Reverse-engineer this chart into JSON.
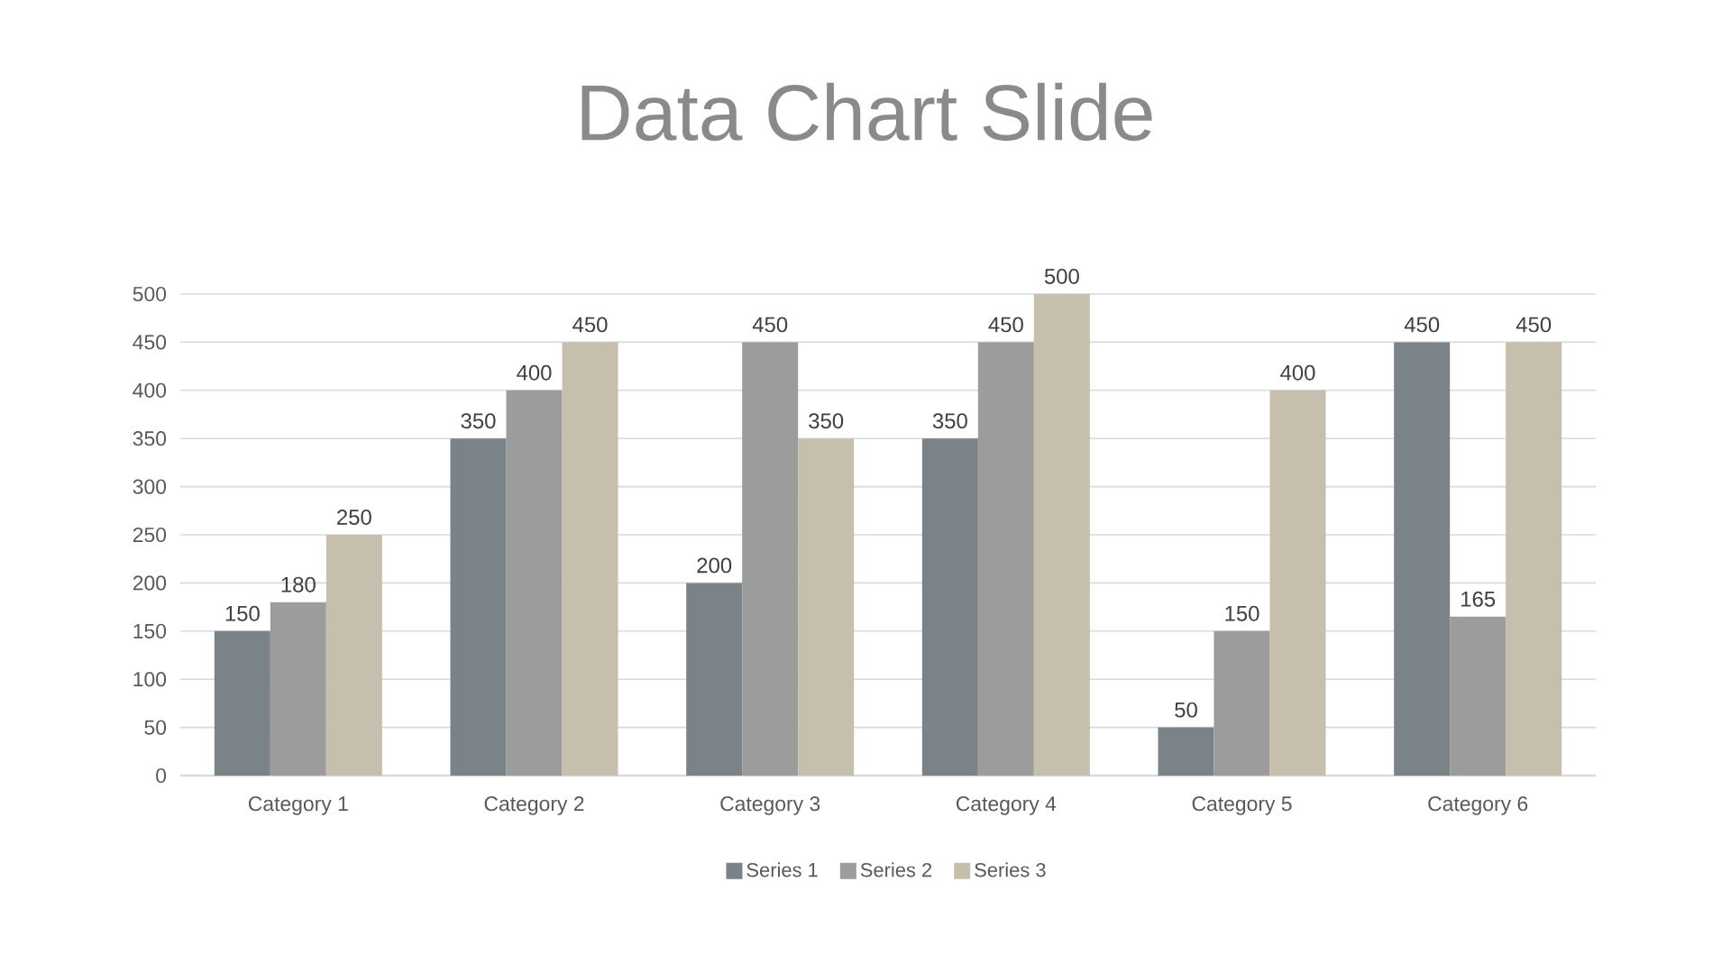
{
  "chart_data": {
    "type": "bar",
    "title": "Data Chart Slide",
    "categories": [
      "Category 1",
      "Category 2",
      "Category 3",
      "Category 4",
      "Category 5",
      "Category 6"
    ],
    "series": [
      {
        "name": "Series 1",
        "color": "#7a8388",
        "values": [
          150,
          350,
          200,
          350,
          50,
          450
        ]
      },
      {
        "name": "Series 2",
        "color": "#9c9c9c",
        "values": [
          180,
          400,
          450,
          450,
          150,
          165
        ]
      },
      {
        "name": "Series 3",
        "color": "#c6bfad",
        "values": [
          250,
          450,
          350,
          500,
          400,
          450
        ]
      }
    ],
    "ylim": [
      0,
      500
    ],
    "yticks": [
      0,
      50,
      100,
      150,
      200,
      250,
      300,
      350,
      400,
      450,
      500
    ],
    "grid": "y",
    "legend": "bottom",
    "data_labels": true
  }
}
